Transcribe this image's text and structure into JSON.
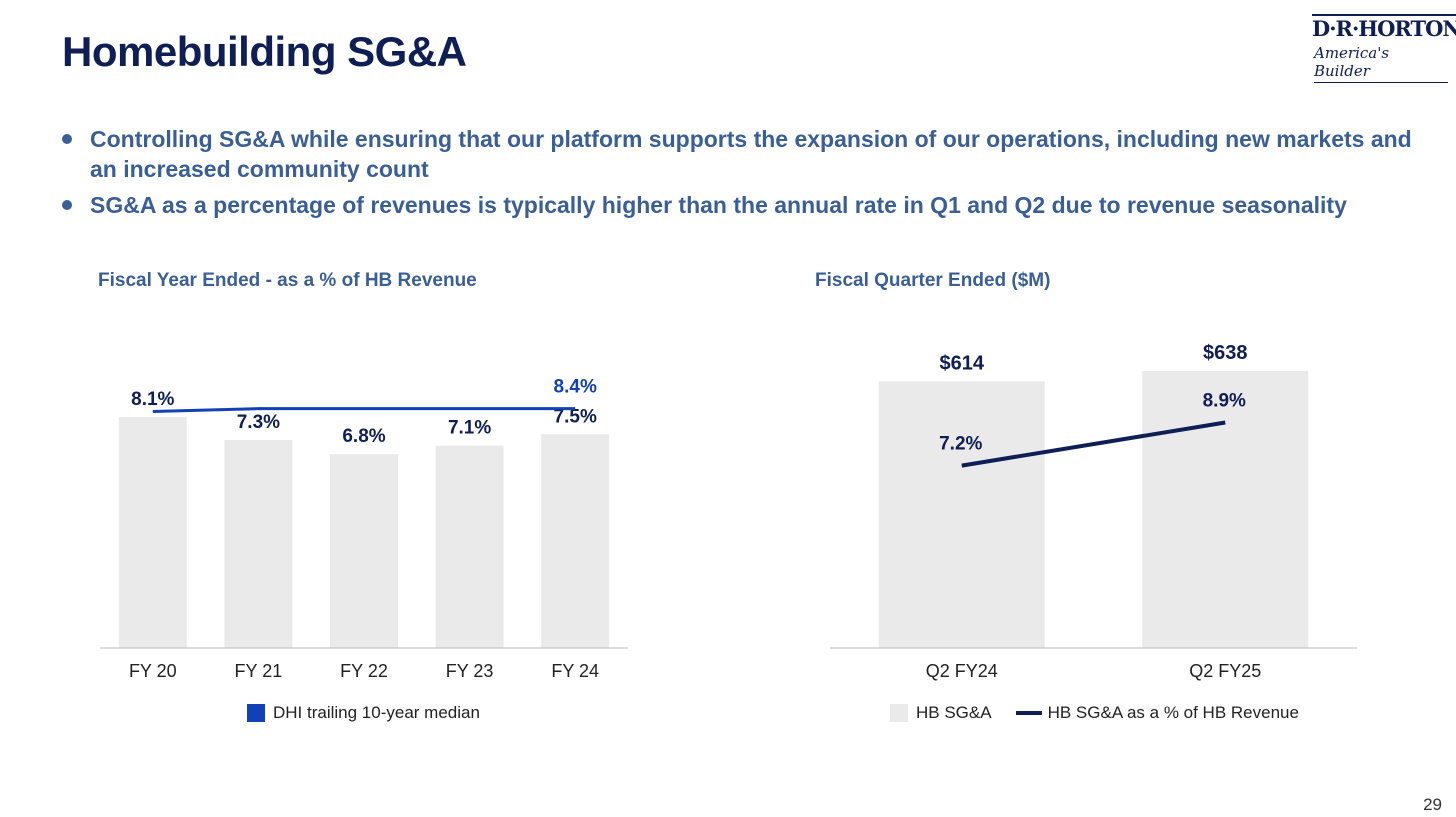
{
  "header": {
    "title": "Homebuilding SG&A",
    "logo": {
      "name": "D·R·HORTON",
      "tagline": "America's Builder"
    }
  },
  "bullets": [
    "Controlling SG&A while ensuring that our platform supports the expansion of our operations, including new markets and an increased community count",
    "SG&A as a percentage of revenues is typically higher than the annual rate in Q1 and Q2 due to revenue seasonality"
  ],
  "colors": {
    "navy": "#0f1e54",
    "accent": "#3a5f97",
    "median_blue": "#1240b6",
    "bar_gray": "#ebeaea"
  },
  "chart_data": [
    {
      "type": "bar",
      "title": "Fiscal Year Ended - as a % of HB Revenue",
      "categories": [
        "FY 20",
        "FY 21",
        "FY 22",
        "FY 23",
        "FY 24"
      ],
      "values": [
        8.1,
        7.3,
        6.8,
        7.1,
        7.5
      ],
      "value_labels": [
        "8.1%",
        "7.3%",
        "6.8%",
        "7.1%",
        "7.5%"
      ],
      "ylim": [
        0,
        10
      ],
      "grid": false,
      "line_series": {
        "name": "DHI trailing 10-year median",
        "values": [
          8.3,
          8.4,
          8.4,
          8.4,
          8.4
        ],
        "end_label": "8.4%"
      },
      "legend": {
        "placement": "bottom-center",
        "entries": [
          "DHI trailing 10-year median"
        ]
      }
    },
    {
      "type": "bar",
      "title": "Fiscal Quarter Ended ($M)",
      "categories": [
        "Q2 FY24",
        "Q2 FY25"
      ],
      "series": [
        {
          "name": "HB SG&A",
          "values": [
            614,
            638
          ],
          "value_labels": [
            "$614",
            "$638"
          ]
        },
        {
          "name": "HB SG&A as a % of HB Revenue",
          "values": [
            7.2,
            8.9
          ],
          "value_labels": [
            "7.2%",
            "8.9%"
          ]
        }
      ],
      "ylim": [
        0,
        700
      ],
      "y2lim": [
        0,
        12
      ],
      "grid": false,
      "legend": {
        "placement": "bottom-center",
        "entries": [
          "HB SG&A",
          "HB SG&A as a % of HB Revenue"
        ]
      }
    }
  ],
  "page_number": "29"
}
